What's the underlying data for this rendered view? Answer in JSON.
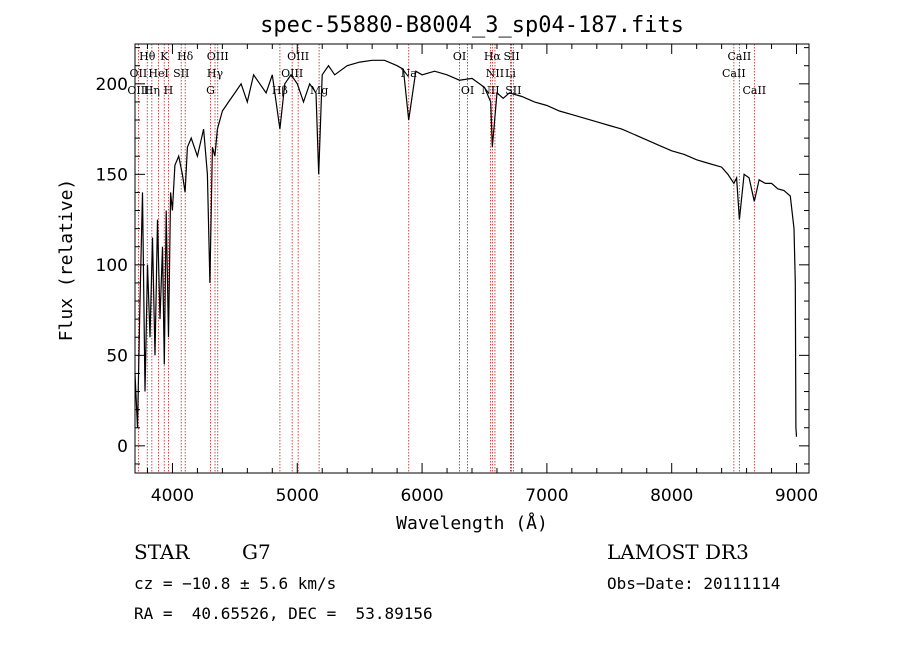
{
  "chart_data": {
    "type": "line",
    "title": "spec-55880-B8004_3_sp04-187.fits",
    "xlabel": "Wavelength (Å)",
    "ylabel": "Flux (relative)",
    "xlim": [
      3700,
      9100
    ],
    "ylim": [
      -15,
      222
    ],
    "xticks": [
      4000,
      5000,
      6000,
      7000,
      8000,
      9000
    ],
    "yticks": [
      0,
      50,
      100,
      150,
      200
    ],
    "series": [
      {
        "name": "spectrum",
        "x": [
          3700,
          3720,
          3740,
          3760,
          3780,
          3800,
          3820,
          3840,
          3860,
          3880,
          3900,
          3920,
          3935,
          3950,
          3968,
          3985,
          4000,
          4020,
          4050,
          4080,
          4101,
          4120,
          4150,
          4200,
          4250,
          4280,
          4300,
          4320,
          4340,
          4360,
          4400,
          4450,
          4500,
          4550,
          4600,
          4650,
          4700,
          4750,
          4800,
          4861,
          4900,
          4950,
          5000,
          5050,
          5100,
          5150,
          5172,
          5200,
          5250,
          5300,
          5400,
          5500,
          5600,
          5700,
          5800,
          5850,
          5893,
          5950,
          6000,
          6100,
          6200,
          6300,
          6400,
          6500,
          6550,
          6563,
          6600,
          6650,
          6700,
          6800,
          6900,
          7000,
          7100,
          7200,
          7300,
          7400,
          7500,
          7600,
          7700,
          7800,
          7900,
          8000,
          8100,
          8200,
          8300,
          8400,
          8450,
          8498,
          8520,
          8542,
          8580,
          8620,
          8662,
          8700,
          8750,
          8800,
          8850,
          8900,
          8950,
          8980,
          8990,
          8995,
          9000
        ],
        "values": [
          40,
          10,
          80,
          140,
          30,
          100,
          60,
          115,
          50,
          125,
          70,
          110,
          45,
          130,
          60,
          140,
          130,
          155,
          160,
          150,
          140,
          165,
          170,
          160,
          175,
          150,
          90,
          165,
          160,
          175,
          185,
          190,
          195,
          200,
          190,
          205,
          200,
          195,
          205,
          175,
          200,
          205,
          200,
          190,
          200,
          195,
          150,
          205,
          210,
          205,
          210,
          212,
          213,
          213,
          210,
          208,
          180,
          207,
          205,
          207,
          205,
          202,
          203,
          198,
          190,
          165,
          195,
          192,
          195,
          193,
          190,
          188,
          185,
          183,
          181,
          179,
          177,
          175,
          172,
          169,
          166,
          163,
          161,
          158,
          156,
          154,
          150,
          145,
          148,
          125,
          150,
          148,
          135,
          147,
          145,
          145,
          142,
          141,
          138,
          120,
          90,
          10,
          5
        ]
      }
    ],
    "spectral_lines": [
      {
        "label": "Hθ",
        "wavelength": 3798,
        "row": 1
      },
      {
        "label": "K",
        "wavelength": 3934,
        "row": 1
      },
      {
        "label": "Hδ",
        "wavelength": 4102,
        "row": 1
      },
      {
        "label": "OIII",
        "wavelength": 4363,
        "row": 1
      },
      {
        "label": "OIII",
        "wavelength": 5007,
        "row": 1
      },
      {
        "label": "OI",
        "wavelength": 6300,
        "row": 1
      },
      {
        "label": "Hα",
        "wavelength": 6563,
        "row": 1
      },
      {
        "label": "SII",
        "wavelength": 6717,
        "row": 1
      },
      {
        "label": "CaII",
        "wavelength": 8542,
        "row": 1
      },
      {
        "label": "OII",
        "wavelength": 3727,
        "row": 2
      },
      {
        "label": "HeI",
        "wavelength": 3889,
        "row": 2
      },
      {
        "label": "SII",
        "wavelength": 4070,
        "row": 2
      },
      {
        "label": "Hγ",
        "wavelength": 4341,
        "row": 2
      },
      {
        "label": "OIII",
        "wavelength": 4959,
        "row": 2
      },
      {
        "label": "Na",
        "wavelength": 5893,
        "row": 2
      },
      {
        "label": "NII",
        "wavelength": 6584,
        "row": 2
      },
      {
        "label": "Li",
        "wavelength": 6708,
        "row": 2
      },
      {
        "label": "CaII",
        "wavelength": 8498,
        "row": 2
      },
      {
        "label": "OIII",
        "wavelength": 3727,
        "row": 3
      },
      {
        "label": "Hη",
        "wavelength": 3835,
        "row": 3
      },
      {
        "label": "H",
        "wavelength": 3968,
        "row": 3
      },
      {
        "label": "G",
        "wavelength": 4305,
        "row": 3
      },
      {
        "label": "Hβ",
        "wavelength": 4861,
        "row": 3
      },
      {
        "label": "Mg",
        "wavelength": 5175,
        "row": 3
      },
      {
        "label": "OI",
        "wavelength": 6364,
        "row": 3
      },
      {
        "label": "NII",
        "wavelength": 6548,
        "row": 3
      },
      {
        "label": "SII",
        "wavelength": 6731,
        "row": 3
      },
      {
        "label": "CaII",
        "wavelength": 8662,
        "row": 3
      }
    ]
  },
  "info": {
    "object_class": "STAR",
    "subclass": "G7",
    "redshift": "cz = −10.8 ± 5.6 km/s",
    "coords": "RA =  40.65526, DEC =  53.89156",
    "survey": "LAMOST DR3",
    "obs_date": "Obs−Date: 20111114"
  },
  "colors": {
    "line_marker": "#b22222",
    "spectrum": "#000000"
  }
}
